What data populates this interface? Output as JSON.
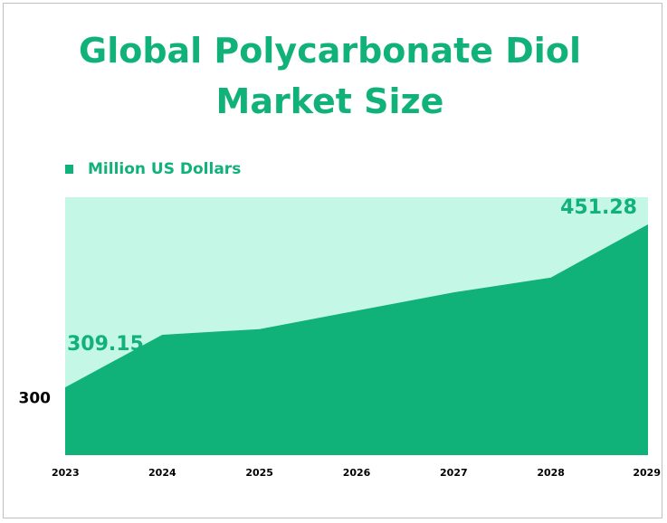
{
  "chart_data": {
    "type": "area",
    "title": "Global Polycarbonate Diol Market Size",
    "title_lines": [
      "Global Polycarbonate Diol",
      "Market Size"
    ],
    "categories": [
      "2023",
      "2024",
      "2025",
      "2026",
      "2027",
      "2028",
      "2029"
    ],
    "series": [
      {
        "name": "Million US Dollars",
        "values": [
          309.15,
          355,
          360,
          376,
          392,
          405,
          451.28
        ]
      }
    ],
    "data_labels": [
      {
        "index": 0,
        "text": "309.15"
      },
      {
        "index": 6,
        "text": "451.28"
      }
    ],
    "y_ticks": [
      "300"
    ],
    "ylim": [
      250,
      475
    ],
    "xlabel": "",
    "ylabel": "",
    "legend_position": "top-left",
    "grid": false,
    "colors": {
      "area": "#10b27a",
      "plot_background": "#c4f7e6",
      "label": "#10b27a",
      "axis_text": "#000000"
    }
  }
}
